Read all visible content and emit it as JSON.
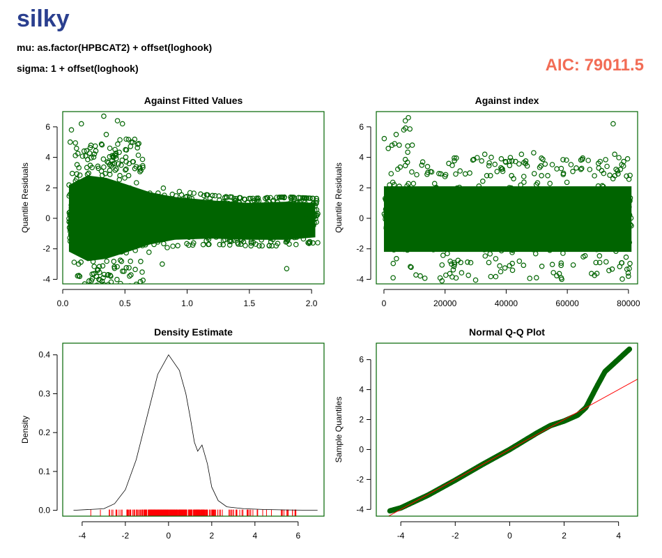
{
  "header": {
    "title": "silky",
    "mu_formula": "mu: as.factor(HPBCAT2) + offset(loghook)",
    "sigma_formula": "sigma: 1 + offset(loghook)",
    "aic_text": "AIC: 79011.5"
  },
  "colors": {
    "points": "#006400",
    "rug": "#ff0000",
    "qqline": "#ff0000",
    "title": "#2a3f8f",
    "aic": "#f26c55"
  },
  "chart_data": [
    {
      "id": "fitted",
      "type": "scatter",
      "title": "Against Fitted Values",
      "xlabel": "",
      "ylabel": "Quantile Residuals",
      "xlim": [
        0.0,
        2.1
      ],
      "ylim": [
        -4.3,
        7.0
      ],
      "xticks": [
        0.0,
        0.5,
        1.0,
        1.5,
        2.0
      ],
      "xtick_labels": [
        "0.0",
        "0.5",
        "1.0",
        "1.5",
        "2.0"
      ],
      "yticks": [
        -4,
        -2,
        0,
        2,
        4,
        6
      ],
      "ytick_labels": [
        "-4",
        "-2",
        "0",
        "2",
        "4",
        "6"
      ],
      "notable_points": [
        [
          0.33,
          6.7
        ],
        [
          0.44,
          6.4
        ],
        [
          0.48,
          6.2
        ],
        [
          0.15,
          6.2
        ],
        [
          0.07,
          5.8
        ],
        [
          0.35,
          5.5
        ],
        [
          0.55,
          5.0
        ],
        [
          0.06,
          5.0
        ],
        [
          0.3,
          -4.05
        ],
        [
          0.23,
          -4.1
        ],
        [
          2.05,
          0.3
        ],
        [
          1.95,
          0.2
        ],
        [
          0.8,
          -3.0
        ],
        [
          1.8,
          -3.3
        ]
      ],
      "envelope": [
        [
          0.05,
          -2.8,
          2.8
        ],
        [
          0.2,
          -3.6,
          3.6
        ],
        [
          0.35,
          -3.4,
          3.4
        ],
        [
          0.5,
          -2.9,
          2.9
        ],
        [
          0.7,
          -2.2,
          2.2
        ],
        [
          0.9,
          -1.8,
          1.8
        ],
        [
          1.2,
          -1.7,
          1.5
        ],
        [
          1.5,
          -1.8,
          1.3
        ],
        [
          1.8,
          -1.8,
          1.4
        ],
        [
          2.03,
          -1.6,
          1.3
        ]
      ]
    },
    {
      "id": "index",
      "type": "scatter",
      "title": "Against  index",
      "xlabel": "",
      "ylabel": "Quantile Residuals",
      "xlim": [
        -2500,
        83000
      ],
      "ylim": [
        -4.3,
        7.0
      ],
      "xticks": [
        0,
        20000,
        40000,
        60000,
        80000
      ],
      "xtick_labels": [
        "0",
        "20000",
        "40000",
        "60000",
        "80000"
      ],
      "yticks": [
        -4,
        -2,
        0,
        2,
        4,
        6
      ],
      "ytick_labels": [
        "-4",
        "-2",
        "0",
        "2",
        "4",
        "6"
      ],
      "n": 81000,
      "notable_points": [
        [
          8000,
          6.6
        ],
        [
          7000,
          6.4
        ],
        [
          6500,
          5.8
        ],
        [
          4000,
          5.5
        ],
        [
          5000,
          4.8
        ],
        [
          75000,
          6.2
        ],
        [
          75500,
          4.2
        ],
        [
          49000,
          4.3
        ],
        [
          45000,
          4.2
        ],
        [
          33000,
          4.2
        ],
        [
          19000,
          -4.1
        ],
        [
          30000,
          -4.05
        ],
        [
          3000,
          -3.9
        ],
        [
          58000,
          -3.9
        ],
        [
          80000,
          -3.8
        ]
      ]
    },
    {
      "id": "density",
      "type": "line",
      "title": "Density Estimate",
      "xlabel": "",
      "ylabel": "Density",
      "xlim": [
        -4.9,
        7.2
      ],
      "ylim": [
        -0.015,
        0.43
      ],
      "xticks": [
        -4,
        -2,
        0,
        2,
        4,
        6
      ],
      "xtick_labels": [
        "-4",
        "-2",
        "0",
        "2",
        "4",
        "6"
      ],
      "yticks": [
        0.0,
        0.1,
        0.2,
        0.3,
        0.4
      ],
      "ytick_labels": [
        "0.0",
        "0.1",
        "0.2",
        "0.3",
        "0.4"
      ],
      "curve": [
        [
          -4.4,
          0.0
        ],
        [
          -3.0,
          0.004
        ],
        [
          -2.5,
          0.017
        ],
        [
          -2.0,
          0.053
        ],
        [
          -1.5,
          0.13
        ],
        [
          -1.0,
          0.24
        ],
        [
          -0.5,
          0.35
        ],
        [
          0.0,
          0.4
        ],
        [
          0.5,
          0.36
        ],
        [
          0.8,
          0.3
        ],
        [
          1.0,
          0.24
        ],
        [
          1.2,
          0.175
        ],
        [
          1.35,
          0.152
        ],
        [
          1.55,
          0.168
        ],
        [
          1.8,
          0.12
        ],
        [
          2.0,
          0.06
        ],
        [
          2.3,
          0.025
        ],
        [
          2.7,
          0.009
        ],
        [
          3.5,
          0.004
        ],
        [
          4.5,
          0.002
        ],
        [
          5.5,
          0.0009
        ],
        [
          6.9,
          0.0
        ]
      ],
      "rug_range": [
        -4.1,
        6.6
      ]
    },
    {
      "id": "qq",
      "type": "scatter",
      "title": "Normal Q-Q Plot",
      "xlabel": "",
      "ylabel": "Sample Quantiles",
      "xlim": [
        -4.9,
        4.7
      ],
      "ylim": [
        -4.45,
        7.1
      ],
      "xticks": [
        -4,
        -2,
        0,
        2,
        4
      ],
      "xtick_labels": [
        "-4",
        "-2",
        "0",
        "2",
        "4"
      ],
      "yticks": [
        -4,
        -2,
        0,
        2,
        4,
        6
      ],
      "ytick_labels": [
        "-4",
        "-2",
        "0",
        "2",
        "4",
        "6"
      ],
      "reference_line": {
        "slope": 1.0,
        "intercept": 0.0
      },
      "quantile_curve": [
        [
          -4.4,
          -4.1
        ],
        [
          -4.0,
          -3.9
        ],
        [
          -3.0,
          -3.05
        ],
        [
          -2.0,
          -2.05
        ],
        [
          -1.0,
          -1.0
        ],
        [
          0.0,
          0.0
        ],
        [
          1.0,
          1.1
        ],
        [
          1.5,
          1.6
        ],
        [
          2.0,
          1.9
        ],
        [
          2.5,
          2.3
        ],
        [
          2.8,
          2.8
        ],
        [
          3.0,
          3.5
        ],
        [
          3.2,
          4.2
        ],
        [
          3.5,
          5.2
        ],
        [
          3.8,
          5.7
        ],
        [
          4.1,
          6.2
        ],
        [
          4.4,
          6.7
        ]
      ]
    }
  ]
}
